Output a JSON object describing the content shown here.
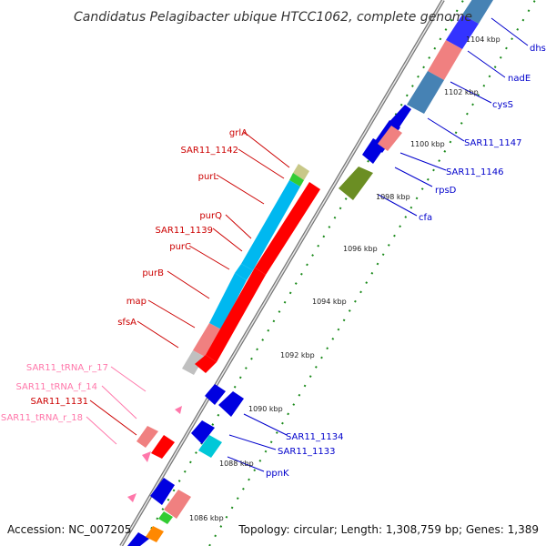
{
  "title": "Candidatus Pelagibacter ubique HTCC1062, complete genome",
  "footer": {
    "accession": "Accession: NC_007205",
    "topology": "Topology: circular; Length: 1,308,759 bp; Genes: 1,389"
  },
  "colors": {
    "plus_strand_label": "#0000cc",
    "minus_strand_label": "#cc0000",
    "trna_label": "#ff77aa",
    "backbone": "#888888",
    "tick": "#1a8a1a"
  },
  "ticks": [
    "1104 kbp",
    "1102 kbp",
    "1100 kbp",
    "1098 kbp",
    "1096 kbp",
    "1094 kbp",
    "1092 kbp",
    "1090 kbp",
    "1088 kbp",
    "1086 kbp"
  ],
  "genes_right": [
    "dhs",
    "nadE",
    "cysS",
    "SAR11_1147",
    "SAR11_1146",
    "rpsD",
    "cfa",
    "SAR11_1134",
    "SAR11_1133",
    "ppnK"
  ],
  "genes_left": [
    "grlA",
    "SAR11_1142",
    "purL",
    "purQ",
    "SAR11_1139",
    "purC",
    "purB",
    "map",
    "sfsA",
    "SAR11_1131"
  ],
  "trna_left": [
    "SAR11_tRNA_r_17",
    "SAR11_tRNA_f_14",
    "SAR11_tRNA_r_18"
  ]
}
